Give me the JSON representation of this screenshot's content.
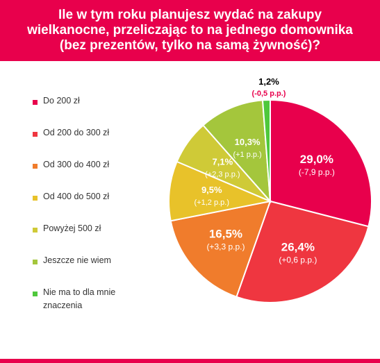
{
  "header": {
    "title_line1": "Ile w tym roku planujesz wydać na zakupy",
    "title_line2": "wielkanocne, przeliczając to na jednego domownika",
    "title_line3": "(bez prezentów, tylko na samą żywność)?"
  },
  "chart_data": {
    "type": "pie",
    "categories": [
      "Do 200 zł",
      "Od 200 do 300 zł",
      "Od 300 do 400 zł",
      "Od 400 do 500 zł",
      "Powyżej 500 zł",
      "Jeszcze nie wiem",
      "Nie ma to dla mnie znaczenia"
    ],
    "values": [
      29.0,
      26.4,
      16.5,
      9.5,
      7.1,
      10.3,
      1.2
    ],
    "value_labels": [
      "29,0%",
      "26,4%",
      "16,5%",
      "9,5%",
      "7,1%",
      "10,3%",
      "1,2%"
    ],
    "change_labels": [
      "(-7,9 p.p.)",
      "(+0,6 p.p.)",
      "(+3,3 p.p.)",
      "(+1,2 p.p.)",
      "(+2,3 p.p.)",
      "(+1 p.p.)",
      "(-0,5 p.p.)"
    ],
    "colors": [
      "#e8004c",
      "#ef3640",
      "#f07c2c",
      "#e8c22a",
      "#cfca37",
      "#a4c63c",
      "#4fc83c"
    ],
    "legend_position": "left"
  }
}
